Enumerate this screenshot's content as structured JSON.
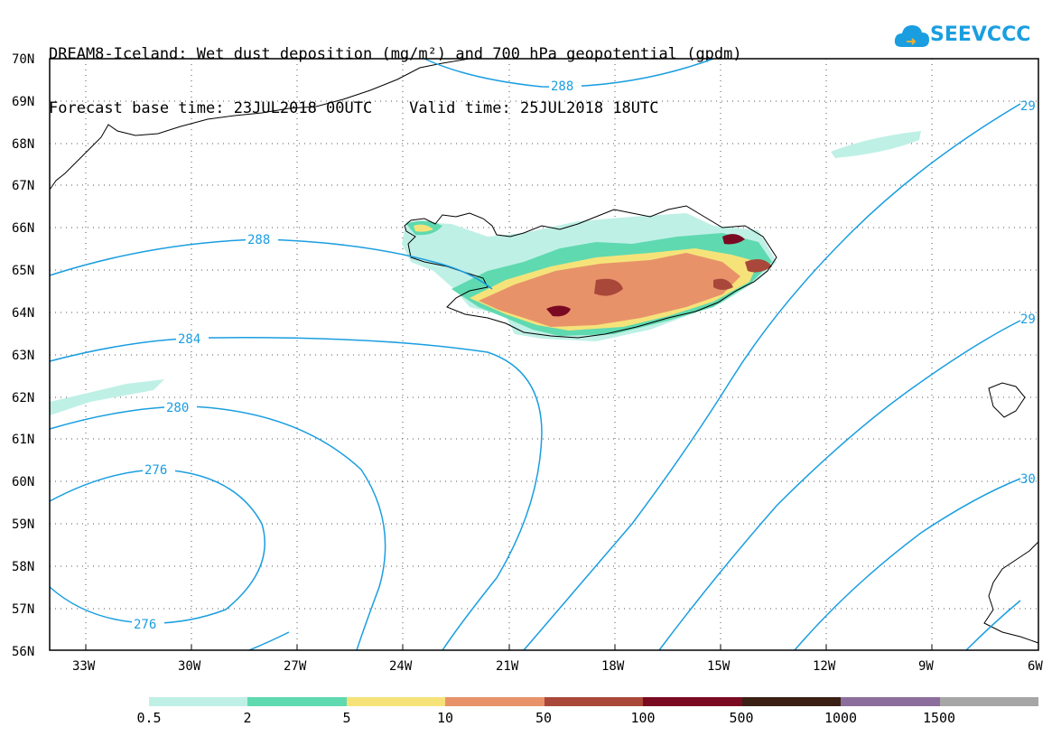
{
  "title": {
    "line1": "DREAM8-Iceland: Wet dust deposition (mg/m²) and 700 hPa geopotential (gpdm)",
    "line2": "Forecast base time: 23JUL2018 00UTC    Valid time: 25JUL2018 18UTC"
  },
  "logo": {
    "text": "SEEVCCC",
    "icon": "cloud-icon",
    "color": "#1a9ee0"
  },
  "map": {
    "lat_labels": [
      "70N",
      "69N",
      "68N",
      "67N",
      "66N",
      "65N",
      "64N",
      "63N",
      "62N",
      "61N",
      "60N",
      "59N",
      "58N",
      "57N",
      "56N"
    ],
    "lon_labels": [
      "33W",
      "30W",
      "27W",
      "24W",
      "21W",
      "18W",
      "15W",
      "12W",
      "9W",
      "6W"
    ],
    "contour_color": "#1a9ee0",
    "contour_labels": [
      {
        "id": "c288-north",
        "text": "288"
      },
      {
        "id": "c288-west",
        "text": "288"
      },
      {
        "id": "c284",
        "text": "284"
      },
      {
        "id": "c280",
        "text": "280"
      },
      {
        "id": "c276-top",
        "text": "276"
      },
      {
        "id": "c276-bottom",
        "text": "276"
      },
      {
        "id": "c29x-ne",
        "text": "29"
      },
      {
        "id": "c29x-e",
        "text": "29"
      },
      {
        "id": "c30x",
        "text": "30"
      }
    ]
  },
  "colorbar": {
    "colors": [
      "#bff0e6",
      "#5fd9b0",
      "#f5e37a",
      "#e8926a",
      "#a9483a",
      "#7a0a22",
      "#3b1f14",
      "#8c6e9c",
      "#a6a6a6"
    ],
    "labels": [
      "0.5",
      "2",
      "5",
      "10",
      "50",
      "100",
      "500",
      "1000",
      "1500"
    ]
  }
}
